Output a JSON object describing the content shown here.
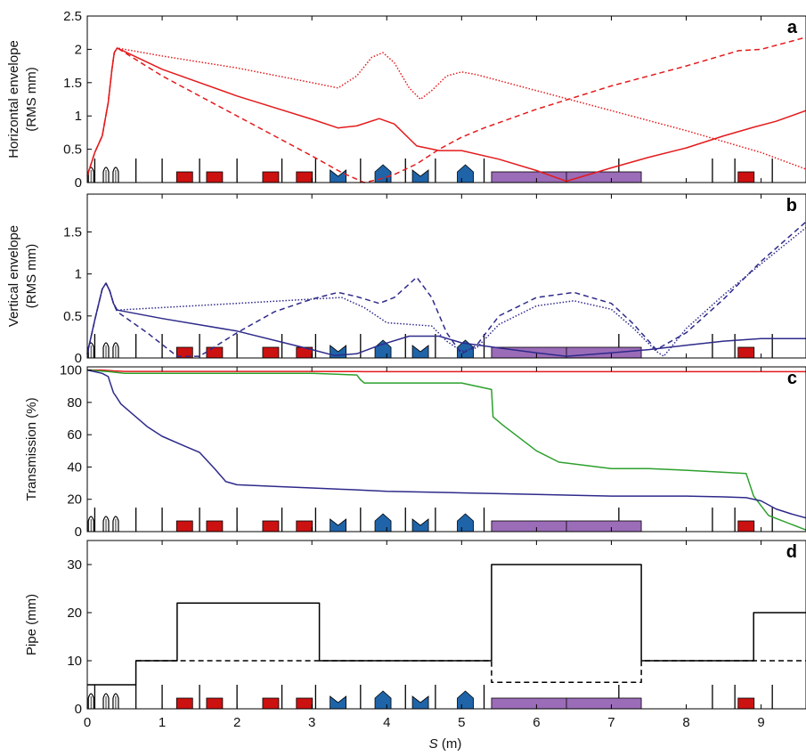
{
  "chart_data": [
    {
      "type": "line",
      "panel": "a",
      "ylabel": [
        "Horizontal envelope",
        "(RMS mm)"
      ],
      "ylim": [
        0,
        2.5
      ],
      "yticks": [
        0,
        0.5,
        1,
        1.5,
        2,
        2.5
      ],
      "xlim": [
        0,
        9.6
      ],
      "series": [
        {
          "style": "solid",
          "color": "#e41a1c",
          "x": [
            0,
            0.1,
            0.2,
            0.28,
            0.33,
            0.36,
            0.4,
            1.0,
            2.0,
            3.0,
            3.35,
            3.6,
            3.9,
            4.1,
            4.4,
            4.7,
            5.0,
            5.5,
            6.0,
            6.4,
            7.0,
            7.5,
            8.0,
            8.5,
            8.9,
            9.2,
            9.6
          ],
          "y": [
            0.1,
            0.45,
            0.7,
            1.2,
            1.7,
            1.95,
            2.02,
            1.7,
            1.3,
            0.95,
            0.82,
            0.85,
            0.96,
            0.88,
            0.55,
            0.48,
            0.48,
            0.35,
            0.18,
            0.02,
            0.22,
            0.38,
            0.52,
            0.7,
            0.83,
            0.92,
            1.08
          ]
        },
        {
          "style": "dashed",
          "color": "#e41a1c",
          "x": [
            0,
            0.1,
            0.2,
            0.28,
            0.33,
            0.36,
            0.4,
            1.0,
            2.0,
            3.0,
            3.4,
            3.7,
            3.9,
            4.1,
            4.4,
            4.7,
            5.0,
            5.3,
            6.0,
            7.0,
            8.0,
            8.7,
            9.0,
            9.6
          ],
          "y": [
            0.1,
            0.45,
            0.7,
            1.2,
            1.7,
            1.95,
            2.02,
            1.6,
            1.0,
            0.4,
            0.15,
            0.0,
            0.05,
            0.12,
            0.28,
            0.5,
            0.68,
            0.82,
            1.1,
            1.45,
            1.75,
            1.98,
            2.0,
            2.18
          ]
        },
        {
          "style": "dotted",
          "color": "#e41a1c",
          "x": [
            0,
            0.1,
            0.2,
            0.28,
            0.33,
            0.36,
            0.4,
            1.0,
            2.0,
            3.0,
            3.35,
            3.6,
            3.8,
            3.95,
            4.1,
            4.3,
            4.45,
            4.6,
            4.8,
            5.0,
            5.2,
            6.0,
            7.0,
            8.0,
            9.0,
            9.6
          ],
          "y": [
            0.1,
            0.45,
            0.7,
            1.2,
            1.7,
            1.95,
            2.02,
            1.9,
            1.72,
            1.5,
            1.42,
            1.6,
            1.88,
            1.95,
            1.8,
            1.42,
            1.25,
            1.38,
            1.6,
            1.66,
            1.62,
            1.38,
            1.08,
            0.78,
            0.45,
            0.2
          ]
        }
      ]
    },
    {
      "type": "line",
      "panel": "b",
      "ylabel": [
        "Vertical envelope",
        "(RMS mm)"
      ],
      "ylim": [
        0,
        1.95
      ],
      "yticks": [
        0,
        0.5,
        1,
        1.5
      ],
      "xlim": [
        0,
        9.6
      ],
      "series": [
        {
          "style": "solid",
          "color": "#2e2a8a",
          "x": [
            0,
            0.1,
            0.2,
            0.25,
            0.3,
            0.35,
            0.4,
            1.0,
            2.0,
            3.0,
            3.3,
            3.6,
            3.9,
            4.3,
            4.7,
            5.0,
            5.5,
            6.0,
            6.4,
            7.0,
            7.5,
            8.0,
            8.5,
            9.0,
            9.6
          ],
          "y": [
            0.05,
            0.45,
            0.82,
            0.89,
            0.8,
            0.65,
            0.57,
            0.47,
            0.32,
            0.1,
            0.03,
            0.05,
            0.15,
            0.26,
            0.26,
            0.18,
            0.12,
            0.06,
            0.02,
            0.06,
            0.1,
            0.15,
            0.2,
            0.23,
            0.23
          ]
        },
        {
          "style": "dashed",
          "color": "#2e2a8a",
          "x": [
            0,
            0.1,
            0.2,
            0.25,
            0.3,
            0.35,
            0.4,
            0.8,
            1.2,
            1.5,
            2.0,
            2.5,
            3.0,
            3.35,
            3.6,
            3.9,
            4.1,
            4.4,
            4.6,
            4.8,
            5.0,
            5.2,
            5.5,
            6.0,
            6.5,
            7.0,
            7.3,
            7.6,
            8.0,
            8.5,
            9.0,
            9.6
          ],
          "y": [
            0.05,
            0.45,
            0.82,
            0.89,
            0.8,
            0.65,
            0.55,
            0.3,
            0.02,
            0.02,
            0.3,
            0.55,
            0.7,
            0.78,
            0.73,
            0.65,
            0.72,
            0.96,
            0.72,
            0.3,
            0.05,
            0.15,
            0.5,
            0.72,
            0.78,
            0.65,
            0.4,
            0.1,
            0.3,
            0.7,
            1.15,
            1.62
          ]
        },
        {
          "style": "dotted",
          "color": "#2e2a8a",
          "x": [
            0,
            0.1,
            0.2,
            0.25,
            0.3,
            0.35,
            0.4,
            1.0,
            2.0,
            3.0,
            3.4,
            3.7,
            4.0,
            4.3,
            4.6,
            4.8,
            5.0,
            5.2,
            5.5,
            6.0,
            6.5,
            7.0,
            7.3,
            7.6,
            7.7,
            8.0,
            8.5,
            9.0,
            9.6
          ],
          "y": [
            0.05,
            0.45,
            0.82,
            0.89,
            0.8,
            0.65,
            0.57,
            0.6,
            0.65,
            0.7,
            0.72,
            0.6,
            0.42,
            0.4,
            0.38,
            0.2,
            0.08,
            0.12,
            0.4,
            0.62,
            0.68,
            0.58,
            0.35,
            0.08,
            0.02,
            0.35,
            0.75,
            1.12,
            1.55
          ]
        }
      ]
    },
    {
      "type": "line",
      "panel": "c",
      "ylabel": [
        "Transmission (%)"
      ],
      "ylim": [
        0,
        102
      ],
      "yticks": [
        0,
        20,
        40,
        60,
        80,
        100
      ],
      "xlim": [
        0,
        9.6
      ],
      "series": [
        {
          "style": "solid",
          "color": "#e41a1c",
          "x": [
            0,
            0.2,
            0.35,
            0.5,
            3.0,
            3.6,
            3.7,
            9.6
          ],
          "y": [
            100,
            100,
            99.5,
            99.2,
            99.2,
            99.1,
            99.0,
            99.0
          ]
        },
        {
          "style": "solid",
          "color": "#2ca02c",
          "x": [
            0,
            0.3,
            0.5,
            3.0,
            3.6,
            3.65,
            3.7,
            5.0,
            5.4,
            5.42,
            5.55,
            6.0,
            6.3,
            7.0,
            7.5,
            8.0,
            8.8,
            8.9,
            9.1,
            9.6
          ],
          "y": [
            100,
            99,
            98,
            98,
            97,
            94,
            92,
            92,
            88,
            71,
            66,
            50,
            43,
            39,
            39,
            38,
            36,
            22,
            10,
            1
          ]
        },
        {
          "style": "solid",
          "color": "#2e2a8a",
          "x": [
            0,
            0.1,
            0.2,
            0.28,
            0.3,
            0.35,
            0.38,
            0.45,
            0.6,
            0.8,
            1.0,
            1.3,
            1.5,
            1.7,
            1.85,
            2.0,
            2.5,
            3.0,
            3.5,
            4.0,
            5.0,
            6.0,
            7.0,
            8.0,
            8.5,
            8.8,
            9.0,
            9.2,
            9.4,
            9.6
          ],
          "y": [
            100,
            99,
            98,
            96,
            93,
            86,
            84,
            79,
            73,
            65,
            59,
            53,
            49,
            39,
            31,
            29,
            28,
            27,
            26,
            25,
            24,
            23,
            22,
            22,
            21.5,
            21,
            19,
            14,
            11,
            8.5
          ]
        }
      ]
    },
    {
      "type": "line",
      "panel": "d",
      "ylabel": [
        "Pipe (mm)"
      ],
      "ylim": [
        0,
        35
      ],
      "yticks": [
        0,
        10,
        20,
        30
      ],
      "xlim": [
        0,
        9.6
      ],
      "xlabel_var": "S",
      "xlabel_unit": "(m)",
      "xticks": [
        0,
        1,
        2,
        3,
        4,
        5,
        6,
        7,
        8,
        9
      ],
      "series": [
        {
          "style": "solid",
          "color": "#000000",
          "x": [
            0,
            0.65,
            0.65,
            1.2,
            1.2,
            3.1,
            3.1,
            5.4,
            5.4,
            7.4,
            7.4,
            8.9,
            8.9,
            9.6
          ],
          "y": [
            5,
            5,
            10,
            10,
            22,
            22,
            10,
            10,
            30,
            30,
            10,
            10,
            20,
            20
          ]
        },
        {
          "style": "dashed",
          "color": "#000000",
          "x": [
            0.65,
            5.4,
            5.4,
            7.4,
            7.4,
            9.6
          ],
          "y": [
            10,
            10,
            5.5,
            5.5,
            10,
            10
          ]
        }
      ]
    }
  ],
  "lattice": {
    "thin_elements": [
      0.1,
      0.65,
      1.0,
      1.5,
      2.0,
      2.6,
      3.05,
      3.65,
      4.25,
      4.65,
      5.3,
      7.1,
      8.35,
      8.65,
      9.15
    ],
    "drifts": [
      0.05,
      0.25,
      0.38
    ],
    "quadrupoles": [
      1.3,
      1.7,
      2.45,
      2.9,
      8.8
    ],
    "defocusing": [
      3.35,
      4.45
    ],
    "focusing": [
      3.95,
      5.05
    ],
    "solenoid": [
      5.4,
      7.4
    ],
    "colors": {
      "quad": "#cc1111",
      "focusing": "#1f64a8",
      "solenoid": "#9b6cb8",
      "thin": "#000000"
    }
  },
  "panel_letters": [
    "a",
    "b",
    "c",
    "d"
  ],
  "colors": {
    "red": "#e41a1c",
    "green": "#2ca02c",
    "blue": "#2e2a8a",
    "black": "#000000"
  }
}
